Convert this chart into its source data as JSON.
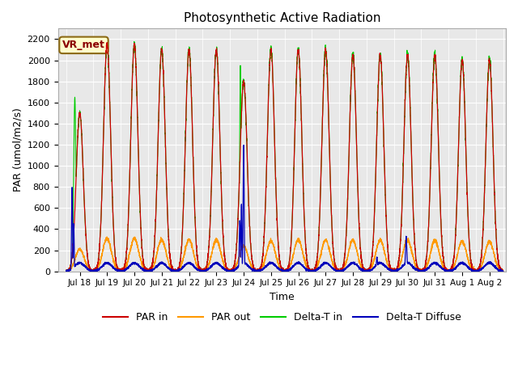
{
  "title": "Photosynthetic Active Radiation",
  "ylabel": "PAR (umol/m2/s)",
  "xlabel": "Time",
  "annotation": "VR_met",
  "ylim": [
    0,
    2300
  ],
  "background_color": "#e8e8e8",
  "colors": {
    "par_in": "#cc0000",
    "par_out": "#ff9900",
    "delta_t_in": "#00cc00",
    "delta_t_diffuse": "#0000bb"
  },
  "legend_labels": [
    "PAR in",
    "PAR out",
    "Delta-T in",
    "Delta-T Diffuse"
  ],
  "x_tick_labels": [
    "Jul 18",
    "Jul 19",
    "Jul 20",
    "Jul 21",
    "Jul 22",
    "Jul 23",
    "Jul 24",
    "Jul 25",
    "Jul 26",
    "Jul 27",
    "Jul 28",
    "Jul 29",
    "Jul 30",
    "Jul 31",
    "Aug 1",
    "Aug 2"
  ],
  "x_tick_positions": [
    0.5,
    1.5,
    2.5,
    3.5,
    4.5,
    5.5,
    6.5,
    7.5,
    8.5,
    9.5,
    10.5,
    11.5,
    12.5,
    13.5,
    14.5,
    15.5
  ],
  "yticks": [
    0,
    200,
    400,
    600,
    800,
    1000,
    1200,
    1400,
    1600,
    1800,
    2000,
    2200
  ],
  "num_days": 16,
  "par_in_peaks": [
    1500,
    2150,
    2150,
    2100,
    2100,
    2100,
    1800,
    2100,
    2100,
    2100,
    2050,
    2050,
    2050,
    2050,
    2000,
    2000
  ],
  "par_out_peaks": [
    210,
    310,
    310,
    300,
    300,
    300,
    240,
    290,
    300,
    295,
    295,
    295,
    300,
    290,
    285,
    280
  ]
}
